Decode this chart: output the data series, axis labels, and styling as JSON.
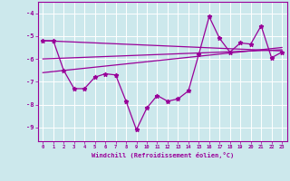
{
  "xlabel": "Windchill (Refroidissement éolien,°C)",
  "ylabel": "",
  "background_color": "#cce8ec",
  "grid_color": "#b0d8de",
  "line_color": "#990099",
  "xlim": [
    -0.5,
    23.5
  ],
  "ylim": [
    -9.6,
    -3.5
  ],
  "yticks": [
    -9,
    -8,
    -7,
    -6,
    -5,
    -4
  ],
  "xticks": [
    0,
    1,
    2,
    3,
    4,
    5,
    6,
    7,
    8,
    9,
    10,
    11,
    12,
    13,
    14,
    15,
    16,
    17,
    18,
    19,
    20,
    21,
    22,
    23
  ],
  "main_x": [
    0,
    1,
    2,
    3,
    4,
    5,
    6,
    7,
    8,
    9,
    10,
    11,
    12,
    13,
    14,
    15,
    16,
    17,
    18,
    19,
    20,
    21,
    22,
    23
  ],
  "main_y": [
    -5.2,
    -5.2,
    -6.5,
    -7.3,
    -7.3,
    -6.8,
    -6.65,
    -6.7,
    -7.85,
    -9.1,
    -8.15,
    -7.6,
    -7.85,
    -7.75,
    -7.4,
    -5.8,
    -4.15,
    -5.1,
    -5.7,
    -5.3,
    -5.35,
    -4.55,
    -5.95,
    -5.7
  ],
  "trend1_x": [
    0,
    23
  ],
  "trend1_y": [
    -5.2,
    -5.65
  ],
  "trend2_x": [
    0,
    23
  ],
  "trend2_y": [
    -6.0,
    -5.6
  ],
  "trend3_x": [
    0,
    23
  ],
  "trend3_y": [
    -6.6,
    -5.5
  ]
}
